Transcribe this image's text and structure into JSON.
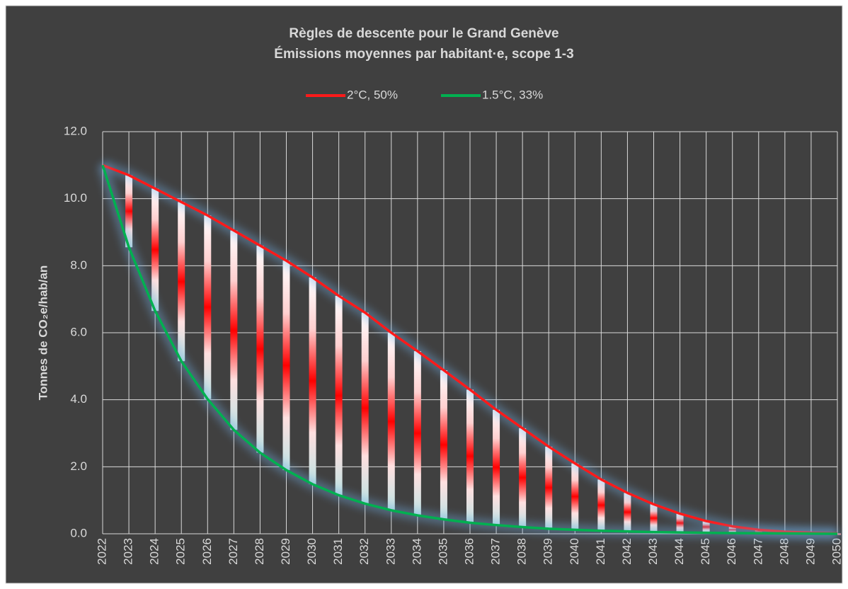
{
  "chart_data": {
    "type": "line",
    "title": [
      "Règles de descente pour le Grand Genève",
      "Émissions moyennes par habitant·e, scope 1-3"
    ],
    "ylabel": "Tonnes de CO₂e/hab/an",
    "categories": [
      "2022",
      "2023",
      "2024",
      "2025",
      "2026",
      "2027",
      "2028",
      "2029",
      "2030",
      "2031",
      "2032",
      "2033",
      "2034",
      "2035",
      "2036",
      "2037",
      "2038",
      "2039",
      "2040",
      "2041",
      "2042",
      "2043",
      "2044",
      "2045",
      "2046",
      "2047",
      "2048",
      "2049",
      "2050"
    ],
    "series": [
      {
        "name": "2°C, 50%",
        "color": "#ff1a1a",
        "values": [
          11.0,
          10.7,
          10.3,
          9.9,
          9.5,
          9.05,
          8.6,
          8.15,
          7.65,
          7.1,
          6.6,
          6.0,
          5.45,
          4.88,
          4.3,
          3.7,
          3.15,
          2.6,
          2.1,
          1.62,
          1.22,
          0.88,
          0.6,
          0.38,
          0.22,
          0.12,
          0.06,
          0.03,
          0.01
        ]
      },
      {
        "name": "1.5°C, 33%",
        "color": "#00b050",
        "values": [
          11.0,
          8.55,
          6.65,
          5.15,
          4.02,
          3.1,
          2.42,
          1.9,
          1.48,
          1.15,
          0.9,
          0.7,
          0.55,
          0.43,
          0.33,
          0.26,
          0.2,
          0.15,
          0.12,
          0.09,
          0.07,
          0.05,
          0.04,
          0.03,
          0.02,
          0.015,
          0.01,
          0.005,
          0.0
        ]
      }
    ],
    "range_bars": true,
    "ylim": [
      0,
      12
    ],
    "yticks": [
      {
        "value": 0,
        "label": "0.0"
      },
      {
        "value": 2,
        "label": "2.0"
      },
      {
        "value": 4,
        "label": "4.0"
      },
      {
        "value": 6,
        "label": "6.0"
      },
      {
        "value": 8,
        "label": "8.0"
      },
      {
        "value": 10,
        "label": "10.0"
      },
      {
        "value": 12,
        "label": "12.0"
      }
    ],
    "grid": true,
    "legend": "top"
  }
}
